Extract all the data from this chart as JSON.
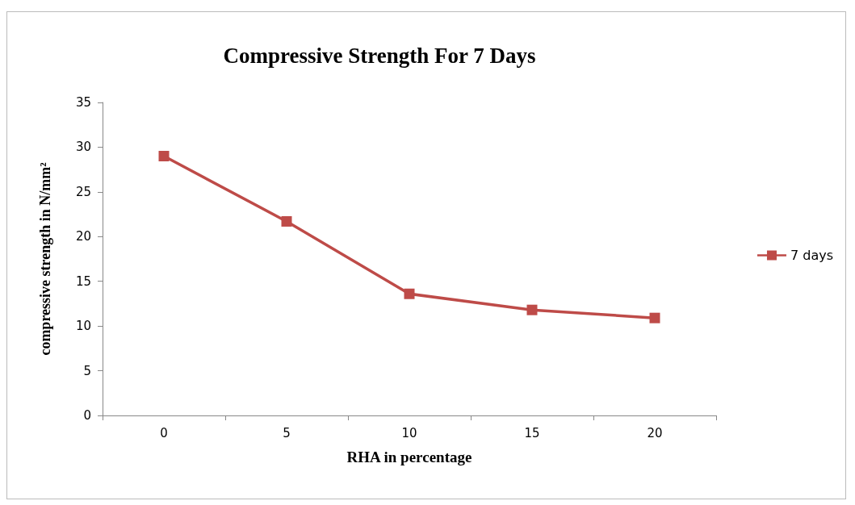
{
  "chart_data": {
    "type": "line",
    "title": "Compressive Strength For 7 Days",
    "xlabel": "RHA in percentage",
    "ylabel": "compressive strength in N/mm²",
    "categories": [
      "0",
      "5",
      "10",
      "15",
      "20"
    ],
    "series": [
      {
        "name": "7 days",
        "color": "#be4b48",
        "values": [
          29,
          21.7,
          13.6,
          11.8,
          10.9
        ]
      }
    ],
    "ylim": [
      0,
      35
    ],
    "yticks": [
      0,
      5,
      10,
      15,
      20,
      25,
      30,
      35
    ],
    "grid": false,
    "legend": "right",
    "marker": "square",
    "line_style": "solid"
  }
}
